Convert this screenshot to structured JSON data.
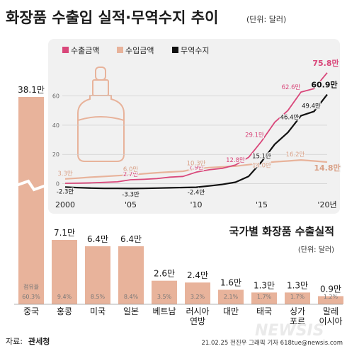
{
  "header": {
    "title": "화장품 수출입 실적·무역수지 추이",
    "unit": "(단위: 달러)"
  },
  "footer": {
    "source_label": "자료:",
    "source_name": "관세청",
    "credit": "21.02.25 전진우 그래픽 기자 618tue@newsis.com",
    "watermark": "NEWSIS"
  },
  "colors": {
    "export": "#d9477a",
    "import": "#e8b39b",
    "balance": "#111111",
    "bar": "#e8b39b",
    "panel": "#f1f1f1"
  },
  "chart_data": [
    {
      "type": "line",
      "title": "화장품 수출입 실적·무역수지 추이",
      "unit": "(단위: 달러)",
      "x": [
        "2000",
        "2001",
        "2002",
        "2003",
        "2004",
        "2005",
        "2006",
        "2007",
        "2008",
        "2009",
        "2010",
        "2011",
        "2012",
        "2013",
        "2014",
        "2015",
        "2016",
        "2017",
        "2018",
        "2019",
        "2020"
      ],
      "x_tick_labels": [
        {
          "x": "2000",
          "label": "2000"
        },
        {
          "x": "2005",
          "label": "'05"
        },
        {
          "x": "2010",
          "label": "'10"
        },
        {
          "x": "2015",
          "label": "'15"
        },
        {
          "x": "2020",
          "label": "'20년"
        }
      ],
      "y_ticks": [
        0,
        20,
        40,
        60
      ],
      "ylim": [
        -6,
        82
      ],
      "grid": true,
      "legend_position": "top-left",
      "series": [
        {
          "name": "수출금액",
          "values": [
            0.3,
            0.4,
            0.6,
            0.9,
            1.3,
            2.7,
            3.0,
            3.5,
            4.5,
            5.0,
            7.9,
            9.5,
            10.5,
            12.8,
            18.0,
            29.1,
            42.0,
            50.0,
            62.6,
            65.0,
            75.8
          ],
          "labels": [
            {
              "index": 5,
              "text": "2.7만"
            },
            {
              "index": 10,
              "text": "7.9만"
            },
            {
              "index": 13,
              "text": "12.8만"
            },
            {
              "index": 15,
              "text": "29.1만"
            },
            {
              "index": 18,
              "text": "62.6만"
            },
            {
              "index": 20,
              "text": "75.8만"
            }
          ]
        },
        {
          "name": "수입금액",
          "values": [
            3.3,
            3.8,
            4.5,
            5.0,
            5.5,
            6.0,
            6.8,
            7.5,
            8.0,
            8.5,
            10.3,
            11.0,
            11.5,
            12.0,
            13.0,
            14.0,
            15.0,
            15.5,
            16.2,
            15.5,
            14.8
          ],
          "labels": [
            {
              "index": 0,
              "text": "3.3만"
            },
            {
              "index": 5,
              "text": "6.0만"
            },
            {
              "index": 10,
              "text": "10.3만"
            },
            {
              "index": 15,
              "text": "14.0만"
            },
            {
              "index": 18,
              "text": "16.2만"
            },
            {
              "index": 20,
              "text": "14.8만"
            }
          ]
        },
        {
          "name": "무역수지",
          "values": [
            -2.3,
            -2.7,
            -3.0,
            -3.2,
            -3.2,
            -3.3,
            -3.2,
            -3.0,
            -2.8,
            -2.6,
            -2.4,
            -1.5,
            -0.5,
            1.0,
            5.0,
            15.1,
            27.0,
            35.0,
            46.4,
            49.4,
            60.9
          ],
          "labels": [
            {
              "index": 0,
              "text": "-2.3만"
            },
            {
              "index": 5,
              "text": "-3.3만"
            },
            {
              "index": 10,
              "text": "-2.4만"
            },
            {
              "index": 15,
              "text": "15.1만"
            },
            {
              "index": 18,
              "text": "46.4만"
            },
            {
              "index": 19,
              "text": "49.4만"
            },
            {
              "index": 20,
              "text": "60.9만"
            }
          ]
        }
      ]
    },
    {
      "type": "bar",
      "title": "국가별 화장품 수출실적",
      "unit": "(단위: 달러)",
      "categories": [
        "중국",
        "홍콩",
        "미국",
        "일본",
        "베트남",
        "러시아\n연방",
        "대만",
        "태국",
        "싱가\n포르",
        "말레\n이시아"
      ],
      "values": [
        38.1,
        7.1,
        6.4,
        6.4,
        2.6,
        2.4,
        1.6,
        1.3,
        1.3,
        0.9
      ],
      "value_labels": [
        "38.1만",
        "7.1만",
        "6.4만",
        "6.4만",
        "2.6만",
        "2.4만",
        "1.6만",
        "1.3만",
        "1.3만",
        "0.9만"
      ],
      "shares": [
        "60.3%",
        "9.4%",
        "8.5%",
        "8.4%",
        "3.5%",
        "3.2%",
        "2.1%",
        "1.7%",
        "1.7%",
        "1.2%"
      ],
      "share_caption": "점유율",
      "axis_break": true
    }
  ]
}
